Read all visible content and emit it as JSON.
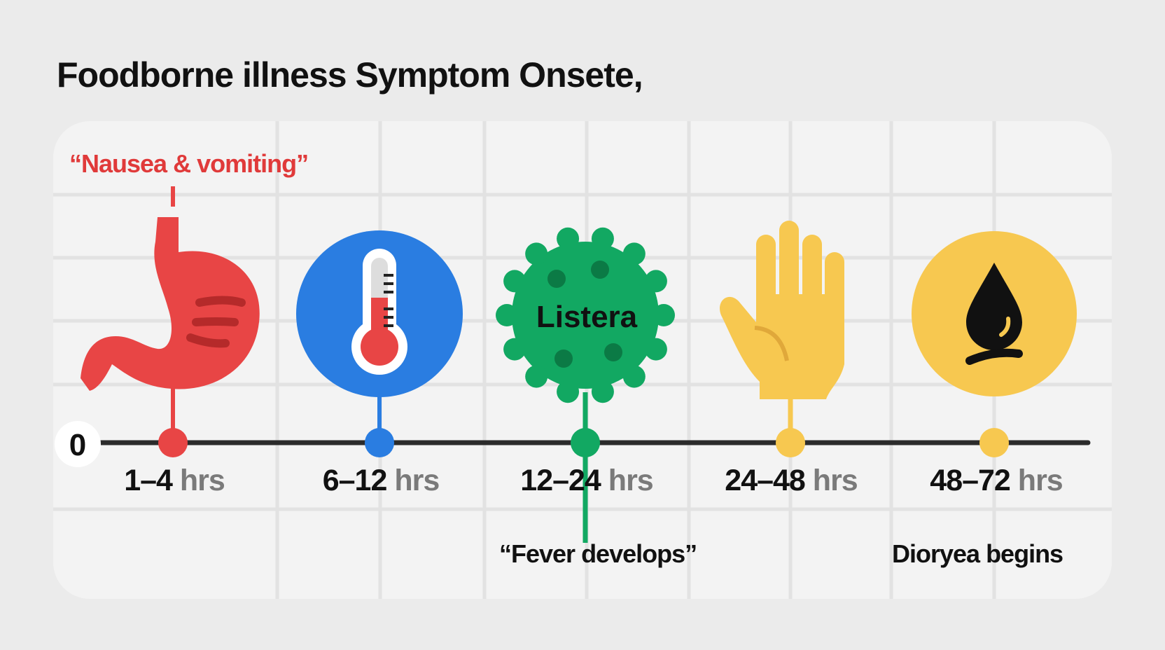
{
  "title": "Foodborne illness Symptom Onsete,",
  "timeline": {
    "origin_label": "0",
    "unit": "hrs",
    "stages": [
      {
        "range": "1–4",
        "icon": "stomach-icon",
        "color": "#e84545"
      },
      {
        "range": "6–12",
        "icon": "thermometer-icon",
        "color": "#2a7de1"
      },
      {
        "range": "12–24",
        "icon": "bacteria-icon",
        "color": "#12a862",
        "icon_text": "Listera"
      },
      {
        "range": "24–48",
        "icon": "hand-icon",
        "color": "#f7c850"
      },
      {
        "range": "48–72",
        "icon": "droplet-icon",
        "color": "#f7c850"
      }
    ]
  },
  "notes": {
    "nausea": "“Nausea & vomiting”",
    "fever": "“Fever develops”",
    "diarrhea": "Dioryea begins"
  }
}
